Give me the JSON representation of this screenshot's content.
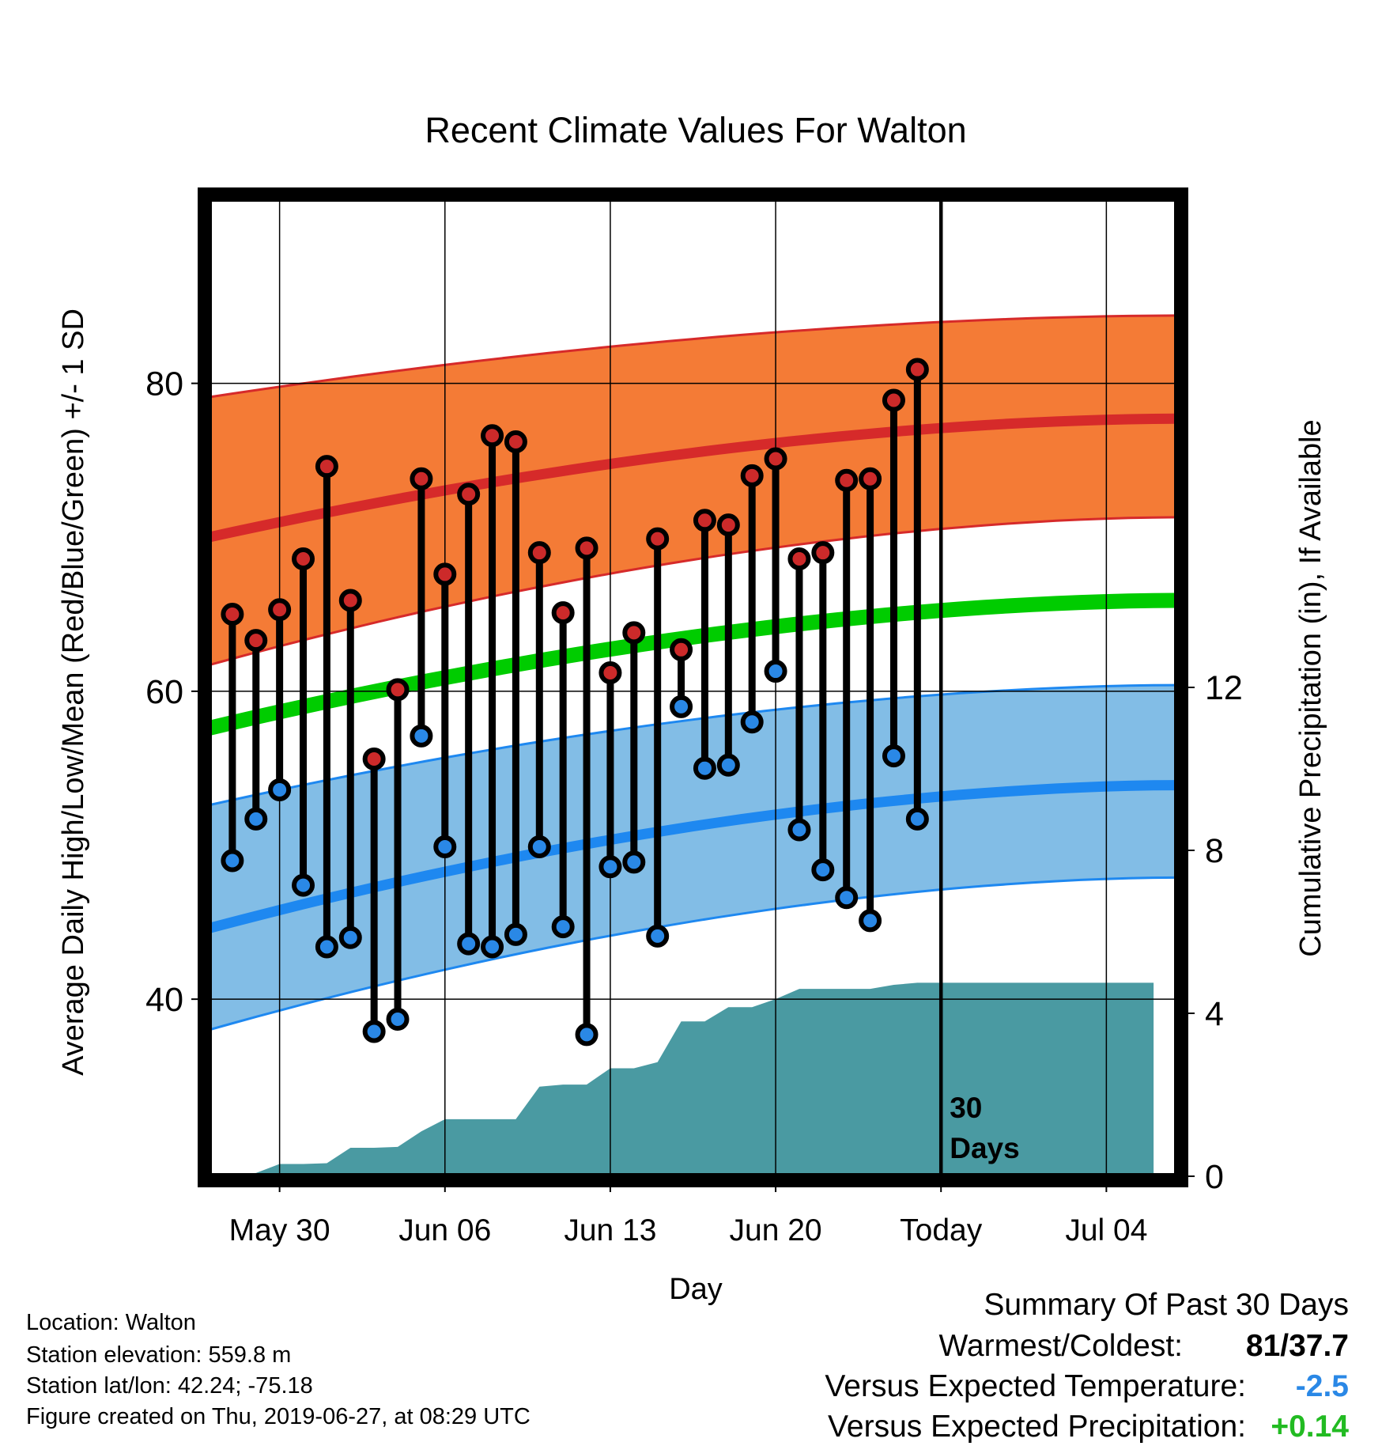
{
  "chart_data": {
    "type": "line",
    "title": "Recent Climate Values For Walton",
    "xlabel": "Day",
    "ylabel_left": "Average Daily High/Low/Mean (Red/Blue/Green) +/- 1 SD",
    "ylabel_right": "Cumulative Precipitation (in), If Available",
    "x_tick_labels": [
      "May 30",
      "Jun 06",
      "Jun 13",
      "Jun 20",
      "Today",
      "Jul 04"
    ],
    "x_tick_day_index": [
      3,
      10,
      17,
      24,
      31,
      38
    ],
    "x_range_days": [
      0,
      41
    ],
    "y_left_ticks": [
      40,
      60,
      80
    ],
    "y_left_range": [
      28.5,
      92
    ],
    "y_right_ticks": [
      0,
      4,
      8,
      12
    ],
    "y_right_range": [
      0,
      24
    ],
    "today_marker_label": "30 Days",
    "daily_highs": [
      65.0,
      63.3,
      65.3,
      68.6,
      74.6,
      65.9,
      55.6,
      60.1,
      73.8,
      67.6,
      72.8,
      76.6,
      76.2,
      69.0,
      65.1,
      69.3,
      61.2,
      63.8,
      69.9,
      62.7,
      71.1,
      70.8,
      74.0,
      75.1,
      68.6,
      69.0,
      73.7,
      73.8,
      78.9,
      80.9
    ],
    "daily_lows": [
      49.0,
      51.7,
      53.6,
      47.4,
      43.4,
      44.0,
      37.9,
      38.7,
      57.1,
      49.9,
      43.6,
      43.4,
      44.2,
      49.9,
      44.7,
      37.7,
      48.6,
      48.9,
      44.1,
      59.0,
      55.0,
      55.2,
      58.0,
      61.3,
      51.0,
      48.4,
      46.6,
      45.1,
      55.8,
      51.7
    ],
    "normal_high": {
      "start": 70.0,
      "end": 77.7
    },
    "normal_high_band": {
      "upper_start": 79.1,
      "upper_end": 84.4,
      "lower_start": 61.7,
      "lower_end": 71.3
    },
    "normal_low": {
      "start": 44.6,
      "end": 53.9
    },
    "normal_low_band": {
      "upper_start": 52.6,
      "upper_end": 60.4,
      "lower_start": 38.0,
      "lower_end": 47.9
    },
    "normal_mean": {
      "start": 57.6,
      "end": 65.9
    },
    "cumulative_precip": [
      0.0,
      0.05,
      0.08,
      0.3,
      0.3,
      0.32,
      0.7,
      0.7,
      0.72,
      1.1,
      1.4,
      1.4,
      1.4,
      1.4,
      2.2,
      2.25,
      2.25,
      2.65,
      2.65,
      2.8,
      3.8,
      3.8,
      4.15,
      4.15,
      4.35,
      4.6,
      4.6,
      4.6,
      4.6,
      4.7,
      4.75,
      4.75,
      4.75,
      4.75,
      4.75,
      4.75,
      4.75,
      4.75,
      4.75,
      4.75,
      4.75
    ],
    "colors": {
      "high_band": "#f47b36",
      "high_line": "#d62a2a",
      "low_band": "#82bde6",
      "low_line": "#1e88f0",
      "mean_line": "#00cc00",
      "precip": "#4a9aa2",
      "high_dot": "#cc2a2a",
      "low_dot": "#2a88e6"
    },
    "grid": true
  },
  "info": {
    "location": "Location: Walton",
    "elevation": "Station elevation: 559.8 m",
    "latlon": "Station lat/lon: 42.24; -75.18",
    "created": "Figure created on Thu, 2019-06-27, at 08:29 UTC"
  },
  "summary": {
    "heading": "Summary Of Past 30 Days",
    "warmest_label": "Warmest/Coldest:",
    "warmest_value": "81/37.7",
    "temp_label": "Versus Expected Temperature:",
    "temp_value": "-2.5",
    "temp_color": "#2a88e6",
    "precip_label": "Versus Expected Precipitation:",
    "precip_value": "+0.14",
    "precip_color": "#22bb22"
  }
}
